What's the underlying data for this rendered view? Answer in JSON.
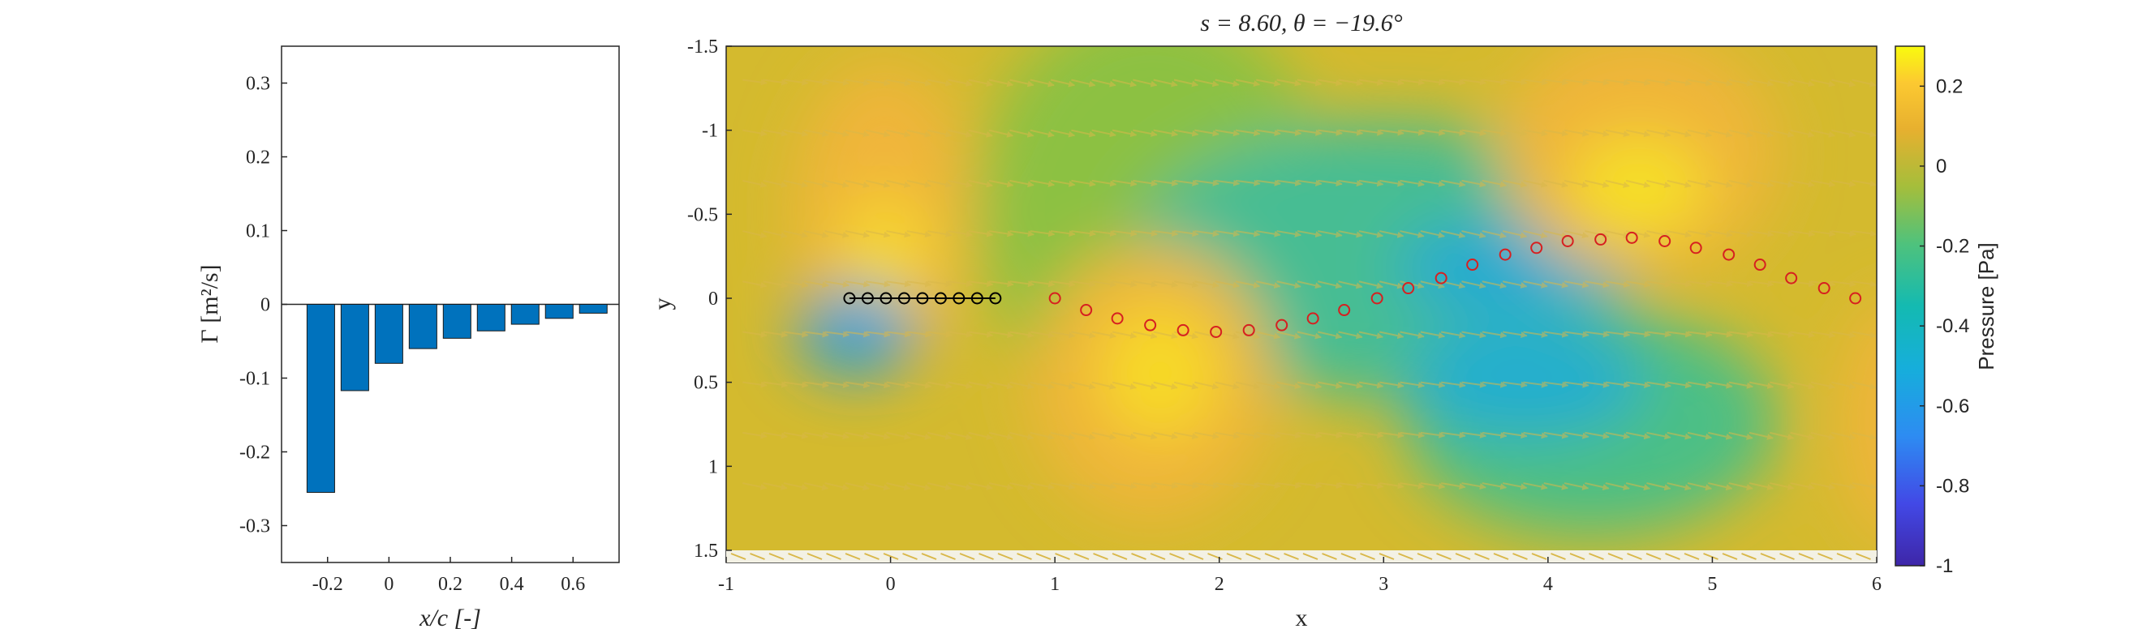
{
  "chart_data": [
    {
      "type": "bar",
      "x": [
        -0.222,
        -0.111,
        0.0,
        0.111,
        0.222,
        0.333,
        0.444,
        0.555,
        0.666
      ],
      "values": [
        -0.255,
        -0.117,
        -0.08,
        -0.06,
        -0.046,
        -0.036,
        -0.027,
        -0.019,
        -0.012
      ],
      "xlim": [
        -0.35,
        0.75
      ],
      "ylim": [
        -0.35,
        0.35
      ],
      "xticks": [
        -0.2,
        0,
        0.2,
        0.4,
        0.6
      ],
      "xtick_labels": [
        "-0.2",
        "0",
        "0.2",
        "0.4",
        "0.6"
      ],
      "yticks": [
        0.3,
        0.2,
        0.1,
        0,
        -0.1,
        -0.2,
        -0.3
      ],
      "ytick_labels": [
        "0.3",
        "0.2",
        "0.1",
        "0",
        "-0.1",
        "-0.2",
        "-0.3"
      ],
      "xlabel": "x/c [-]",
      "ylabel": "Γ [m²/s]",
      "bar_color": "#0072bd"
    },
    {
      "type": "heatmap",
      "title": "s = 8.60, θ = −19.6°",
      "xlabel": "x",
      "ylabel": "y",
      "xlim": [
        -1,
        6
      ],
      "ylim": [
        -1.5,
        1.5
      ],
      "y_reversed": true,
      "xticks": [
        -1,
        0,
        1,
        2,
        3,
        4,
        5,
        6
      ],
      "xtick_labels": [
        "-1",
        "0",
        "1",
        "2",
        "3",
        "4",
        "5",
        "6"
      ],
      "yticks": [
        -1.5,
        -1,
        -0.5,
        0,
        0.5,
        1,
        1.5
      ],
      "ytick_labels": [
        "-1.5",
        "-1",
        "-0.5",
        "0",
        "0.5",
        "1",
        "1.5"
      ],
      "colorbar": {
        "label": "Pressure [Pa]",
        "range": [
          -1,
          0.3
        ],
        "ticks": [
          0.2,
          0,
          -0.2,
          -0.4,
          -0.6,
          -0.8,
          -1
        ],
        "tick_labels": [
          "0.2",
          "0",
          "-0.2",
          "-0.4",
          "-0.6",
          "-0.8",
          "-1"
        ],
        "colormap": "parula"
      },
      "airfoil_points": {
        "color": "#000000",
        "x": [
          -0.25,
          -0.139,
          -0.028,
          0.083,
          0.194,
          0.305,
          0.416,
          0.527,
          0.638
        ],
        "y": [
          0,
          0,
          0,
          0,
          0,
          0,
          0,
          0,
          0
        ]
      },
      "wake_points": {
        "color": "#d62020",
        "x": [
          1.0,
          1.19,
          1.38,
          1.58,
          1.78,
          1.98,
          2.18,
          2.38,
          2.57,
          2.76,
          2.96,
          3.15,
          3.35,
          3.54,
          3.74,
          3.93,
          4.12,
          4.32,
          4.51,
          4.71,
          4.9,
          5.1,
          5.29,
          5.48,
          5.68,
          5.87
        ],
        "y": [
          0,
          0.07,
          0.12,
          0.16,
          0.19,
          0.2,
          0.19,
          0.16,
          0.12,
          0.07,
          0.0,
          -0.06,
          -0.12,
          -0.2,
          -0.26,
          -0.3,
          -0.34,
          -0.35,
          -0.36,
          -0.34,
          -0.3,
          -0.26,
          -0.2,
          -0.12,
          -0.06,
          0.0
        ]
      },
      "arrow_color": "#d9b84a"
    }
  ]
}
